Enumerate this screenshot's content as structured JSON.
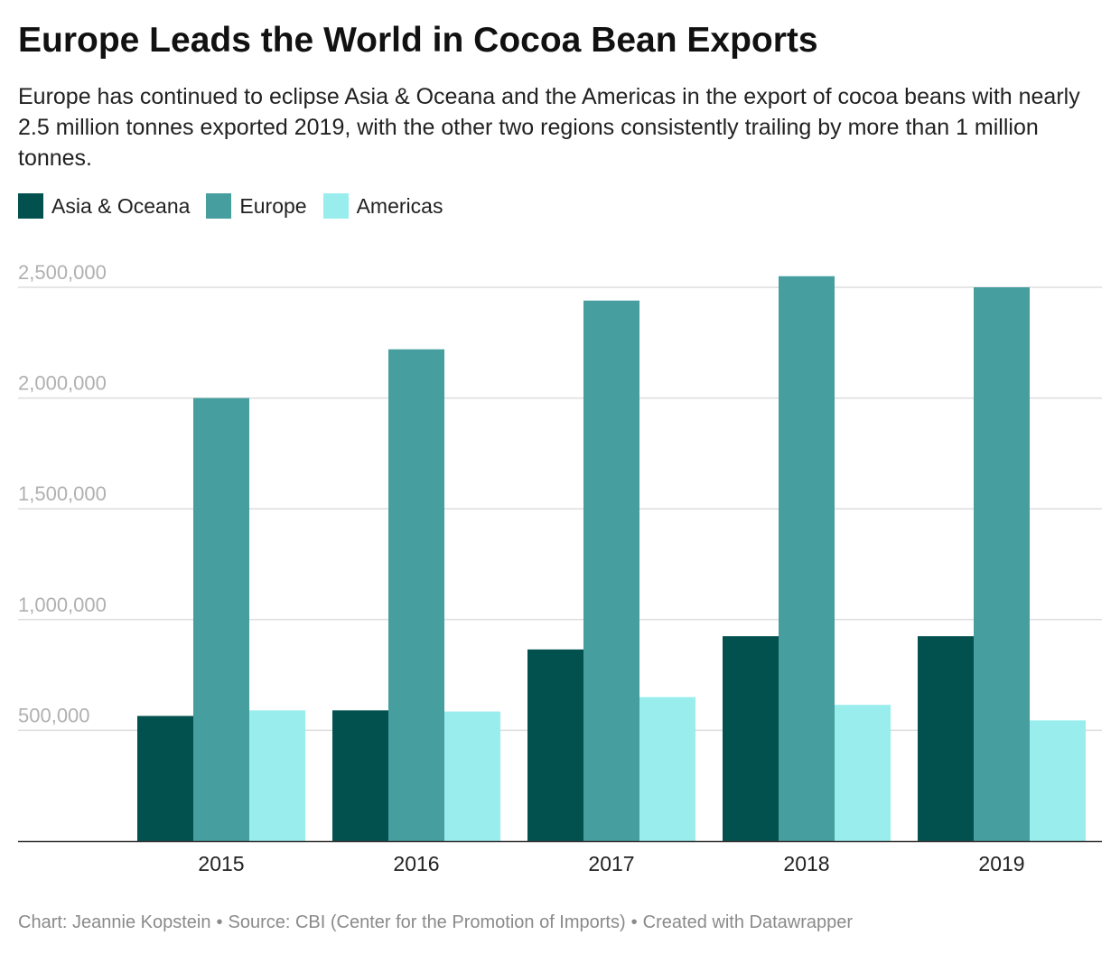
{
  "header": {
    "title": "Europe Leads the World in Cocoa Bean Exports",
    "subtitle": "Europe has continued to eclipse Asia & Oceana and the Americas in the export of cocoa beans with nearly 2.5 million tonnes exported 2019, with the other two regions consistently trailing by more than 1 million tonnes."
  },
  "footer": {
    "credit": "Chart: Jeannie Kopstein",
    "source": "Source: CBI (Center for the Promotion of Imports)",
    "tool": "Created with Datawrapper",
    "separator": "•"
  },
  "chart_data": {
    "type": "bar",
    "title": "Europe Leads the World in Cocoa Bean Exports",
    "xlabel": "",
    "ylabel": "",
    "categories": [
      "2015",
      "2016",
      "2017",
      "2018",
      "2019"
    ],
    "series": [
      {
        "name": "Asia & Oceana",
        "color": "#03514f",
        "values": [
          565000,
          590000,
          865000,
          925000,
          925000
        ]
      },
      {
        "name": "Europe",
        "color": "#469e9f",
        "values": [
          2000000,
          2220000,
          2440000,
          2550000,
          2500000
        ]
      },
      {
        "name": "Americas",
        "color": "#9aeded",
        "values": [
          590000,
          585000,
          650000,
          615000,
          545000
        ]
      }
    ],
    "ylim": [
      0,
      2500000
    ],
    "yticks": [
      500000,
      1000000,
      1500000,
      2000000,
      2500000
    ],
    "ytick_labels": [
      "500,000",
      "1,000,000",
      "1,500,000",
      "2,000,000",
      "2,500,000"
    ],
    "grid": true,
    "legend": "top-left"
  }
}
